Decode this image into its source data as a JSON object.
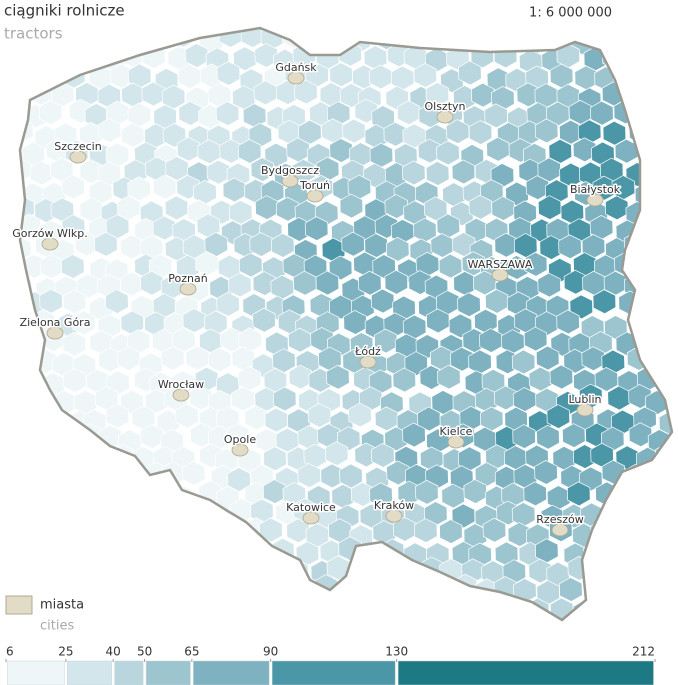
{
  "title": "ciągniki rolnicze",
  "subtitle": "tractors",
  "scale": "1: 6 000 000",
  "cities": [
    "Gdańsk",
    "Olsztyn",
    "Szczecin",
    "Bydgoszcz",
    "Toruń",
    "Białystok",
    "Gorzów Wlkp.",
    "Poznań",
    "WARSZAWA",
    "Zielona Góra",
    "Łódź",
    "Wrocław",
    "Lublin",
    "Kielce",
    "Opole",
    "Katowice",
    "Kraków",
    "Rzeszów"
  ],
  "city_legend": {
    "label": "miasta",
    "sublabel": "cities",
    "color": "#e2dbc6"
  },
  "legend": {
    "breaks": [
      6,
      25,
      40,
      50,
      65,
      90,
      130,
      212
    ],
    "colors": [
      "#eef6f8",
      "#d3e6eb",
      "#b9d6de",
      "#9cc5d0",
      "#7eb2c0",
      "#4b97a7",
      "#1d7a85"
    ]
  }
}
